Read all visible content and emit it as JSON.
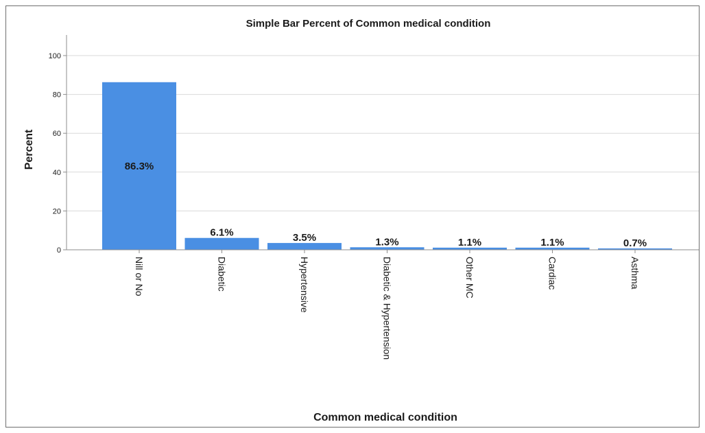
{
  "chart_data": {
    "type": "bar",
    "title": "Simple Bar Percent of Common medical condition",
    "xlabel": "Common medical condition",
    "ylabel": "Percent",
    "ylim": [
      0,
      100
    ],
    "yticks": [
      0,
      20,
      40,
      60,
      80,
      100
    ],
    "grid": true,
    "categories": [
      "Nill or No",
      "Diabetic",
      "Hypertensive",
      "Diabetic & Hypertension",
      "Other MC",
      "Cardiac",
      "Asthma"
    ],
    "values": [
      86.3,
      6.1,
      3.5,
      1.3,
      1.1,
      1.1,
      0.7
    ],
    "data_labels": [
      "86.3%",
      "6.1%",
      "3.5%",
      "1.3%",
      "1.1%",
      "1.1%",
      "0.7%"
    ],
    "colors": {
      "bar": "#4a8fe3",
      "grid": "#d9d9d9",
      "axis": "#8c8c8c"
    }
  }
}
